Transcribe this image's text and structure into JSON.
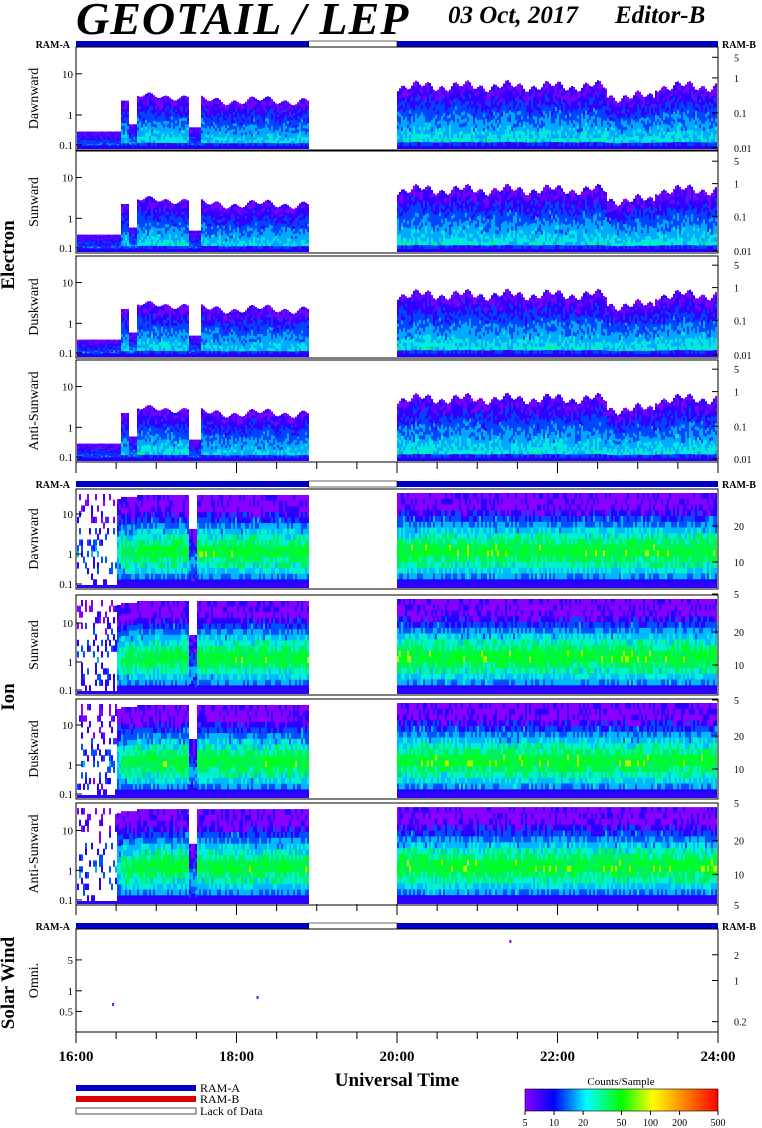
{
  "header": {
    "title": "GEOTAIL / LEP",
    "date": "03 Oct, 2017",
    "editor": "Editor-B"
  },
  "ram_labels": {
    "a": "RAM-A",
    "b": "RAM-B"
  },
  "colors": {
    "ram_a": "#0000cc",
    "ram_b": "#dd0000",
    "lack": "#ffffff"
  },
  "sections": [
    {
      "name": "Electron"
    },
    {
      "name": "Ion"
    },
    {
      "name": "Solar Wind"
    }
  ],
  "panels": [
    {
      "label": "Dawnward",
      "species": "Electron",
      "left_ticks": [
        "10",
        "1",
        "0.1"
      ],
      "right_ticks": [
        "5",
        "1",
        "0.1",
        "0.01"
      ]
    },
    {
      "label": "Sunward",
      "species": "Electron",
      "left_ticks": [
        "10",
        "1",
        "0.1"
      ],
      "right_ticks": [
        "5",
        "1",
        "0.1",
        "0.01"
      ]
    },
    {
      "label": "Duskward",
      "species": "Electron",
      "left_ticks": [
        "10",
        "1",
        "0.1"
      ],
      "right_ticks": [
        "5",
        "1",
        "0.1",
        "0.01"
      ]
    },
    {
      "label": "Anti-Sunward",
      "species": "Electron",
      "left_ticks": [
        "10",
        "1",
        "0.1"
      ],
      "right_ticks": [
        "5",
        "1",
        "0.1",
        "0.01"
      ]
    },
    {
      "label": "Dawnward",
      "species": "Ion",
      "left_ticks": [
        "10",
        "1",
        "0.1"
      ],
      "right_ticks": [
        "20",
        "10",
        "5"
      ]
    },
    {
      "label": "Sunward",
      "species": "Ion",
      "left_ticks": [
        "10",
        "1",
        "0.1"
      ],
      "right_ticks": [
        "20",
        "10",
        "5"
      ]
    },
    {
      "label": "Duskward",
      "species": "Ion",
      "left_ticks": [
        "10",
        "1",
        "0.1"
      ],
      "right_ticks": [
        "20",
        "10",
        "5"
      ]
    },
    {
      "label": "Anti-Sunward",
      "species": "Ion",
      "left_ticks": [
        "10",
        "1",
        "0.1"
      ],
      "right_ticks": [
        "20",
        "10",
        "5"
      ]
    },
    {
      "label": "Omni.",
      "species": "Solar Wind",
      "left_ticks": [
        "5",
        "1",
        "0.5"
      ],
      "right_ticks": [
        "2",
        "1",
        "0.2"
      ]
    }
  ],
  "chart_data": {
    "type": "heatmap",
    "xlabel": "Universal Time",
    "x_ticks": [
      "16:00",
      "18:00",
      "20:00",
      "22:00",
      "24:00"
    ],
    "x_range_hours": [
      16,
      24
    ],
    "data_gaps_hours": [
      [
        18.9,
        20.0
      ]
    ],
    "ram_a_intervals": [
      [
        16.0,
        18.9
      ],
      [
        20.0,
        24.0
      ]
    ],
    "lack_of_data_intervals": [
      [
        18.9,
        20.0
      ]
    ],
    "colorbar": {
      "title": "Counts/Sample",
      "ticks": [
        "5",
        "10",
        "20",
        "50",
        "100",
        "200",
        "500"
      ],
      "min": 5,
      "max": 500,
      "scale": "log"
    }
  },
  "legend": {
    "items": [
      {
        "label": "RAM-A",
        "color": "#0000cc"
      },
      {
        "label": "RAM-B",
        "color": "#dd0000"
      },
      {
        "label": "Lack of Data",
        "color": "#ffffff"
      }
    ]
  }
}
